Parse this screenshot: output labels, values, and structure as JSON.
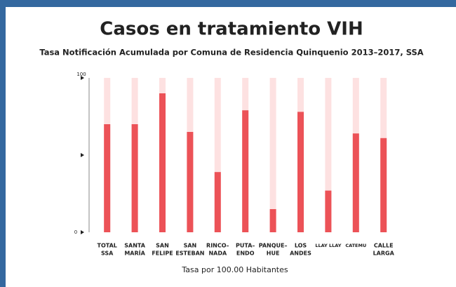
{
  "chart_data": {
    "type": "bar",
    "title": "Casos en tratamiento VIH",
    "subtitle": "Tasa Notificación Acumulada por Comuna de Residencia Quinquenio 2013–2017, SSA",
    "x_label": "Tasa por 100.00 Habitantes",
    "categories": [
      [
        "TOTAL",
        "SSA"
      ],
      [
        "SANTA",
        "MARÍA"
      ],
      [
        "SAN",
        "FELIPE"
      ],
      [
        "SAN",
        "ESTEBAN"
      ],
      [
        "RINCO–",
        "NADA"
      ],
      [
        "PUTA–",
        "ENDO"
      ],
      [
        "PANQUE–",
        "HUE"
      ],
      [
        "LOS",
        "ANDES"
      ],
      [
        "LLAY LLAY"
      ],
      [
        "CATEMU"
      ],
      [
        "CALLE",
        "LARGA"
      ]
    ],
    "values": [
      70,
      70,
      90,
      65,
      39,
      79,
      15,
      78,
      27,
      64,
      61
    ],
    "color": "#ec5257",
    "track_color": "#fde1e1",
    "ylim": [
      0,
      100
    ],
    "yticks": [
      0,
      {
        "value": 50,
        "label": null
      },
      100
    ]
  }
}
